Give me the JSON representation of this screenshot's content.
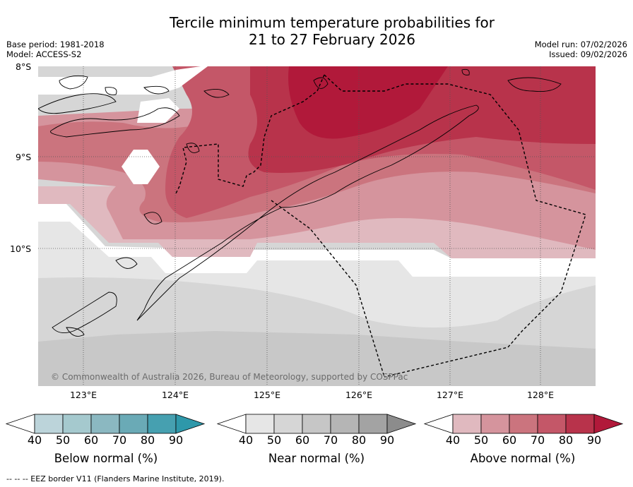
{
  "header": {
    "title_line1": "Tercile minimum temperature probabilities for",
    "title_line2": "21 to 27 February 2026",
    "base_period": "Base period: 1981-2018",
    "model": "Model: ACCESS-S2",
    "model_run": "Model run: 07/02/2026",
    "issued": "Issued: 09/02/2026"
  },
  "map": {
    "lat_labels": [
      "8°S",
      "9°S",
      "10°S"
    ],
    "lon_labels": [
      "123°E",
      "124°E",
      "125°E",
      "126°E",
      "127°E",
      "128°E"
    ],
    "copyright": "© Commonwealth of Australia 2026, Bureau of Meteorology, supported by COSPPac"
  },
  "colorbars": [
    {
      "label": "Below normal (%)",
      "ticks": [
        "40",
        "50",
        "60",
        "70",
        "80",
        "90"
      ],
      "colors": [
        "#ffffff",
        "#bcd4da",
        "#a5c9ce",
        "#8bb8c1",
        "#6aaab6",
        "#46a0b0",
        "#2e98aa"
      ]
    },
    {
      "label": "Near normal (%)",
      "ticks": [
        "40",
        "50",
        "60",
        "70",
        "80",
        "90"
      ],
      "colors": [
        "#ffffff",
        "#e6e6e6",
        "#d6d6d6",
        "#c6c6c6",
        "#b5b5b5",
        "#a3a3a3",
        "#8c8c8c"
      ]
    },
    {
      "label": "Above normal (%)",
      "ticks": [
        "40",
        "50",
        "60",
        "70",
        "80",
        "90"
      ],
      "colors": [
        "#ffffff",
        "#e0b9bf",
        "#d5949d",
        "#cb747e",
        "#c45768",
        "#b8334b",
        "#b1193a"
      ]
    }
  ],
  "footer": {
    "legend_text": "--  --  -- EEZ border V11 (Flanders Marine Institute, 2019)."
  }
}
